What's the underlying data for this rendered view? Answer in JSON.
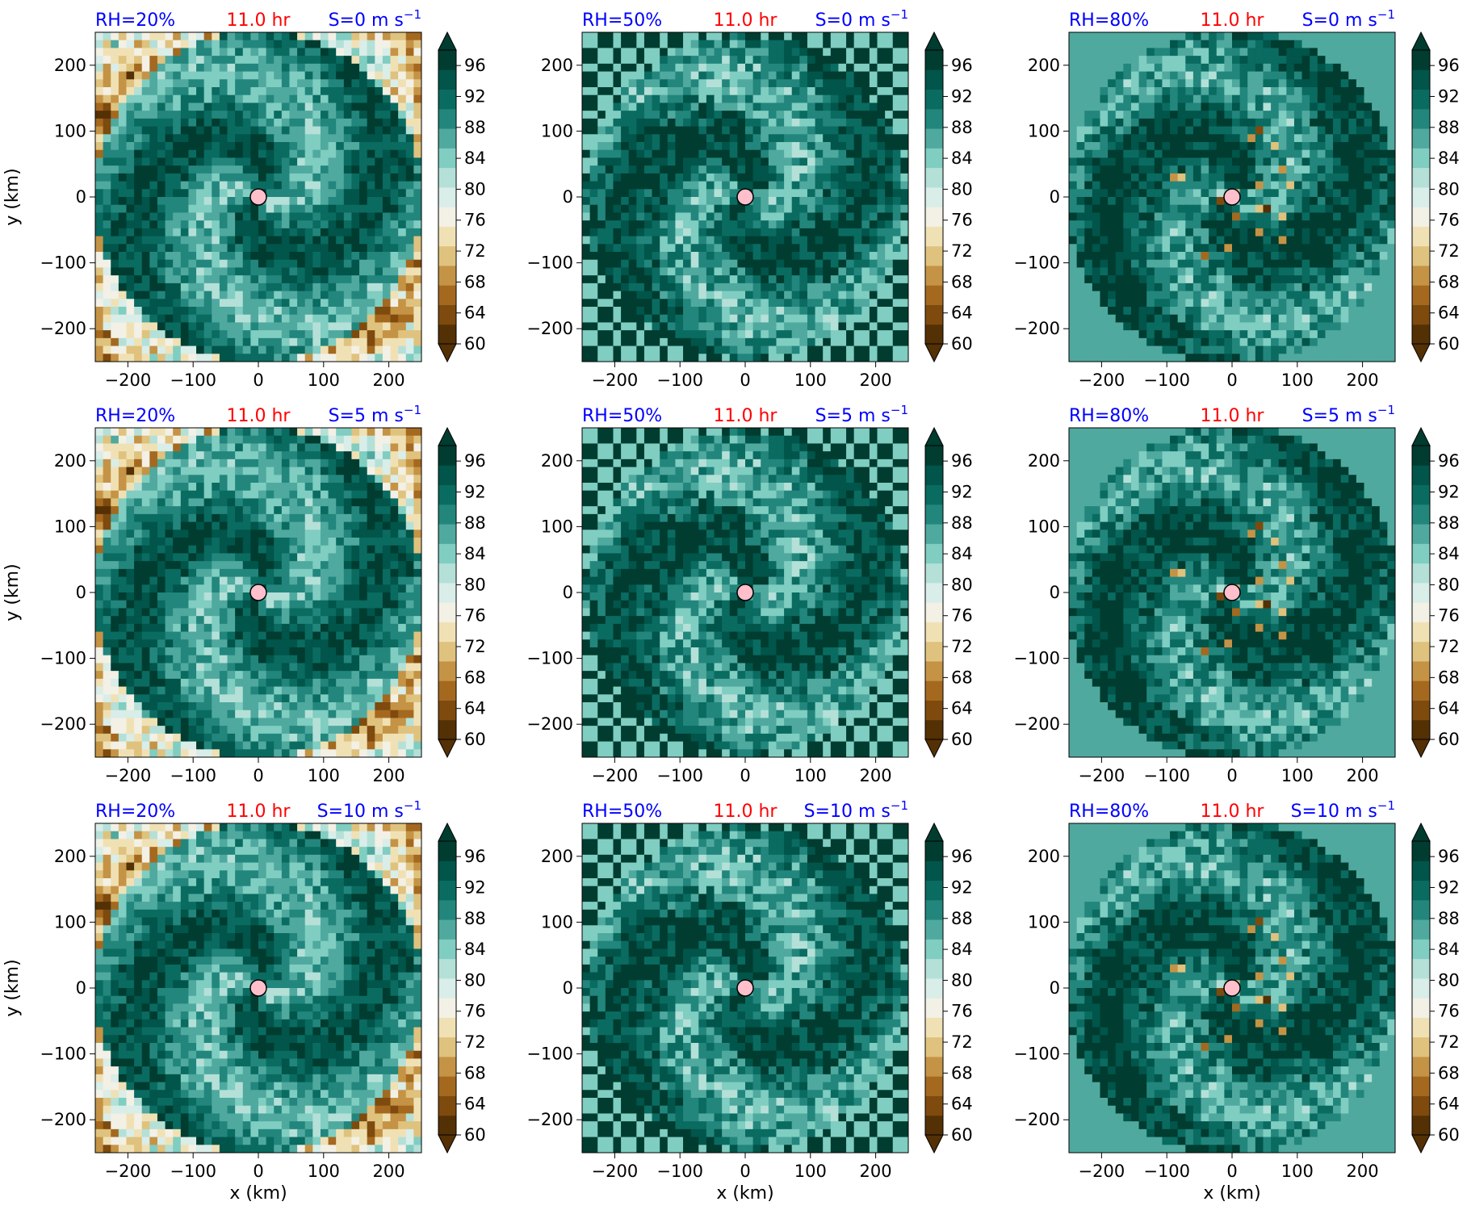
{
  "figure": {
    "time_label": "11.0 hr",
    "xlabel": "x (km)",
    "ylabel": "y (km)",
    "axis_ticks": [
      "−200",
      "−100",
      "0",
      "100",
      "200"
    ],
    "colorbar_ticks": [
      "60",
      "64",
      "68",
      "72",
      "76",
      "80",
      "84",
      "88",
      "92",
      "96"
    ],
    "colors": {
      "rh_label": "#0000ff",
      "time_label": "#ff0000",
      "shear_label": "#0000ff",
      "center_marker": "#ffc0cb"
    }
  },
  "panels": [
    {
      "rh": "RH=20%",
      "time": "11.0 hr",
      "shear": "S=0 m s",
      "sup": "−1"
    },
    {
      "rh": "RH=50%",
      "time": "11.0 hr",
      "shear": "S=0 m s",
      "sup": "−1"
    },
    {
      "rh": "RH=80%",
      "time": "11.0 hr",
      "shear": "S=0 m s",
      "sup": "−1"
    },
    {
      "rh": "RH=20%",
      "time": "11.0 hr",
      "shear": "S=5 m s",
      "sup": "−1"
    },
    {
      "rh": "RH=50%",
      "time": "11.0 hr",
      "shear": "S=5 m s",
      "sup": "−1"
    },
    {
      "rh": "RH=80%",
      "time": "11.0 hr",
      "shear": "S=5 m s",
      "sup": "−1"
    },
    {
      "rh": "RH=20%",
      "time": "11.0 hr",
      "shear": "S=10 m s",
      "sup": "−1"
    },
    {
      "rh": "RH=50%",
      "time": "11.0 hr",
      "shear": "S=10 m s",
      "sup": "−1"
    },
    {
      "rh": "RH=80%",
      "time": "11.0 hr",
      "shear": "S=10 m s",
      "sup": "−1"
    }
  ],
  "chart_data": {
    "type": "heatmap",
    "layout": "3x3 grid",
    "rows_shear_m_per_s": [
      0,
      5,
      10
    ],
    "cols_rh_percent": [
      20,
      50,
      80
    ],
    "x_range": [
      -250,
      250
    ],
    "y_range": [
      -250,
      250
    ],
    "x_ticks": [
      -200,
      -100,
      0,
      100,
      200
    ],
    "y_ticks": [
      -200,
      -100,
      0,
      100,
      200
    ],
    "colorbar": {
      "min": 60,
      "max": 98,
      "extend": "both",
      "ticks": [
        60,
        64,
        68,
        72,
        76,
        80,
        84,
        88,
        92,
        96
      ],
      "palette": [
        "#543005",
        "#7e4a0e",
        "#a4691f",
        "#c59345",
        "#dfc27d",
        "#f0e1b5",
        "#f3f0e5",
        "#d9ede9",
        "#b4e0d8",
        "#80cdc1",
        "#4fa99e",
        "#22867d",
        "#0a6b61",
        "#01554a",
        "#003c30"
      ]
    },
    "center_marker": {
      "x": 0,
      "y": 0
    },
    "grid": false
  }
}
